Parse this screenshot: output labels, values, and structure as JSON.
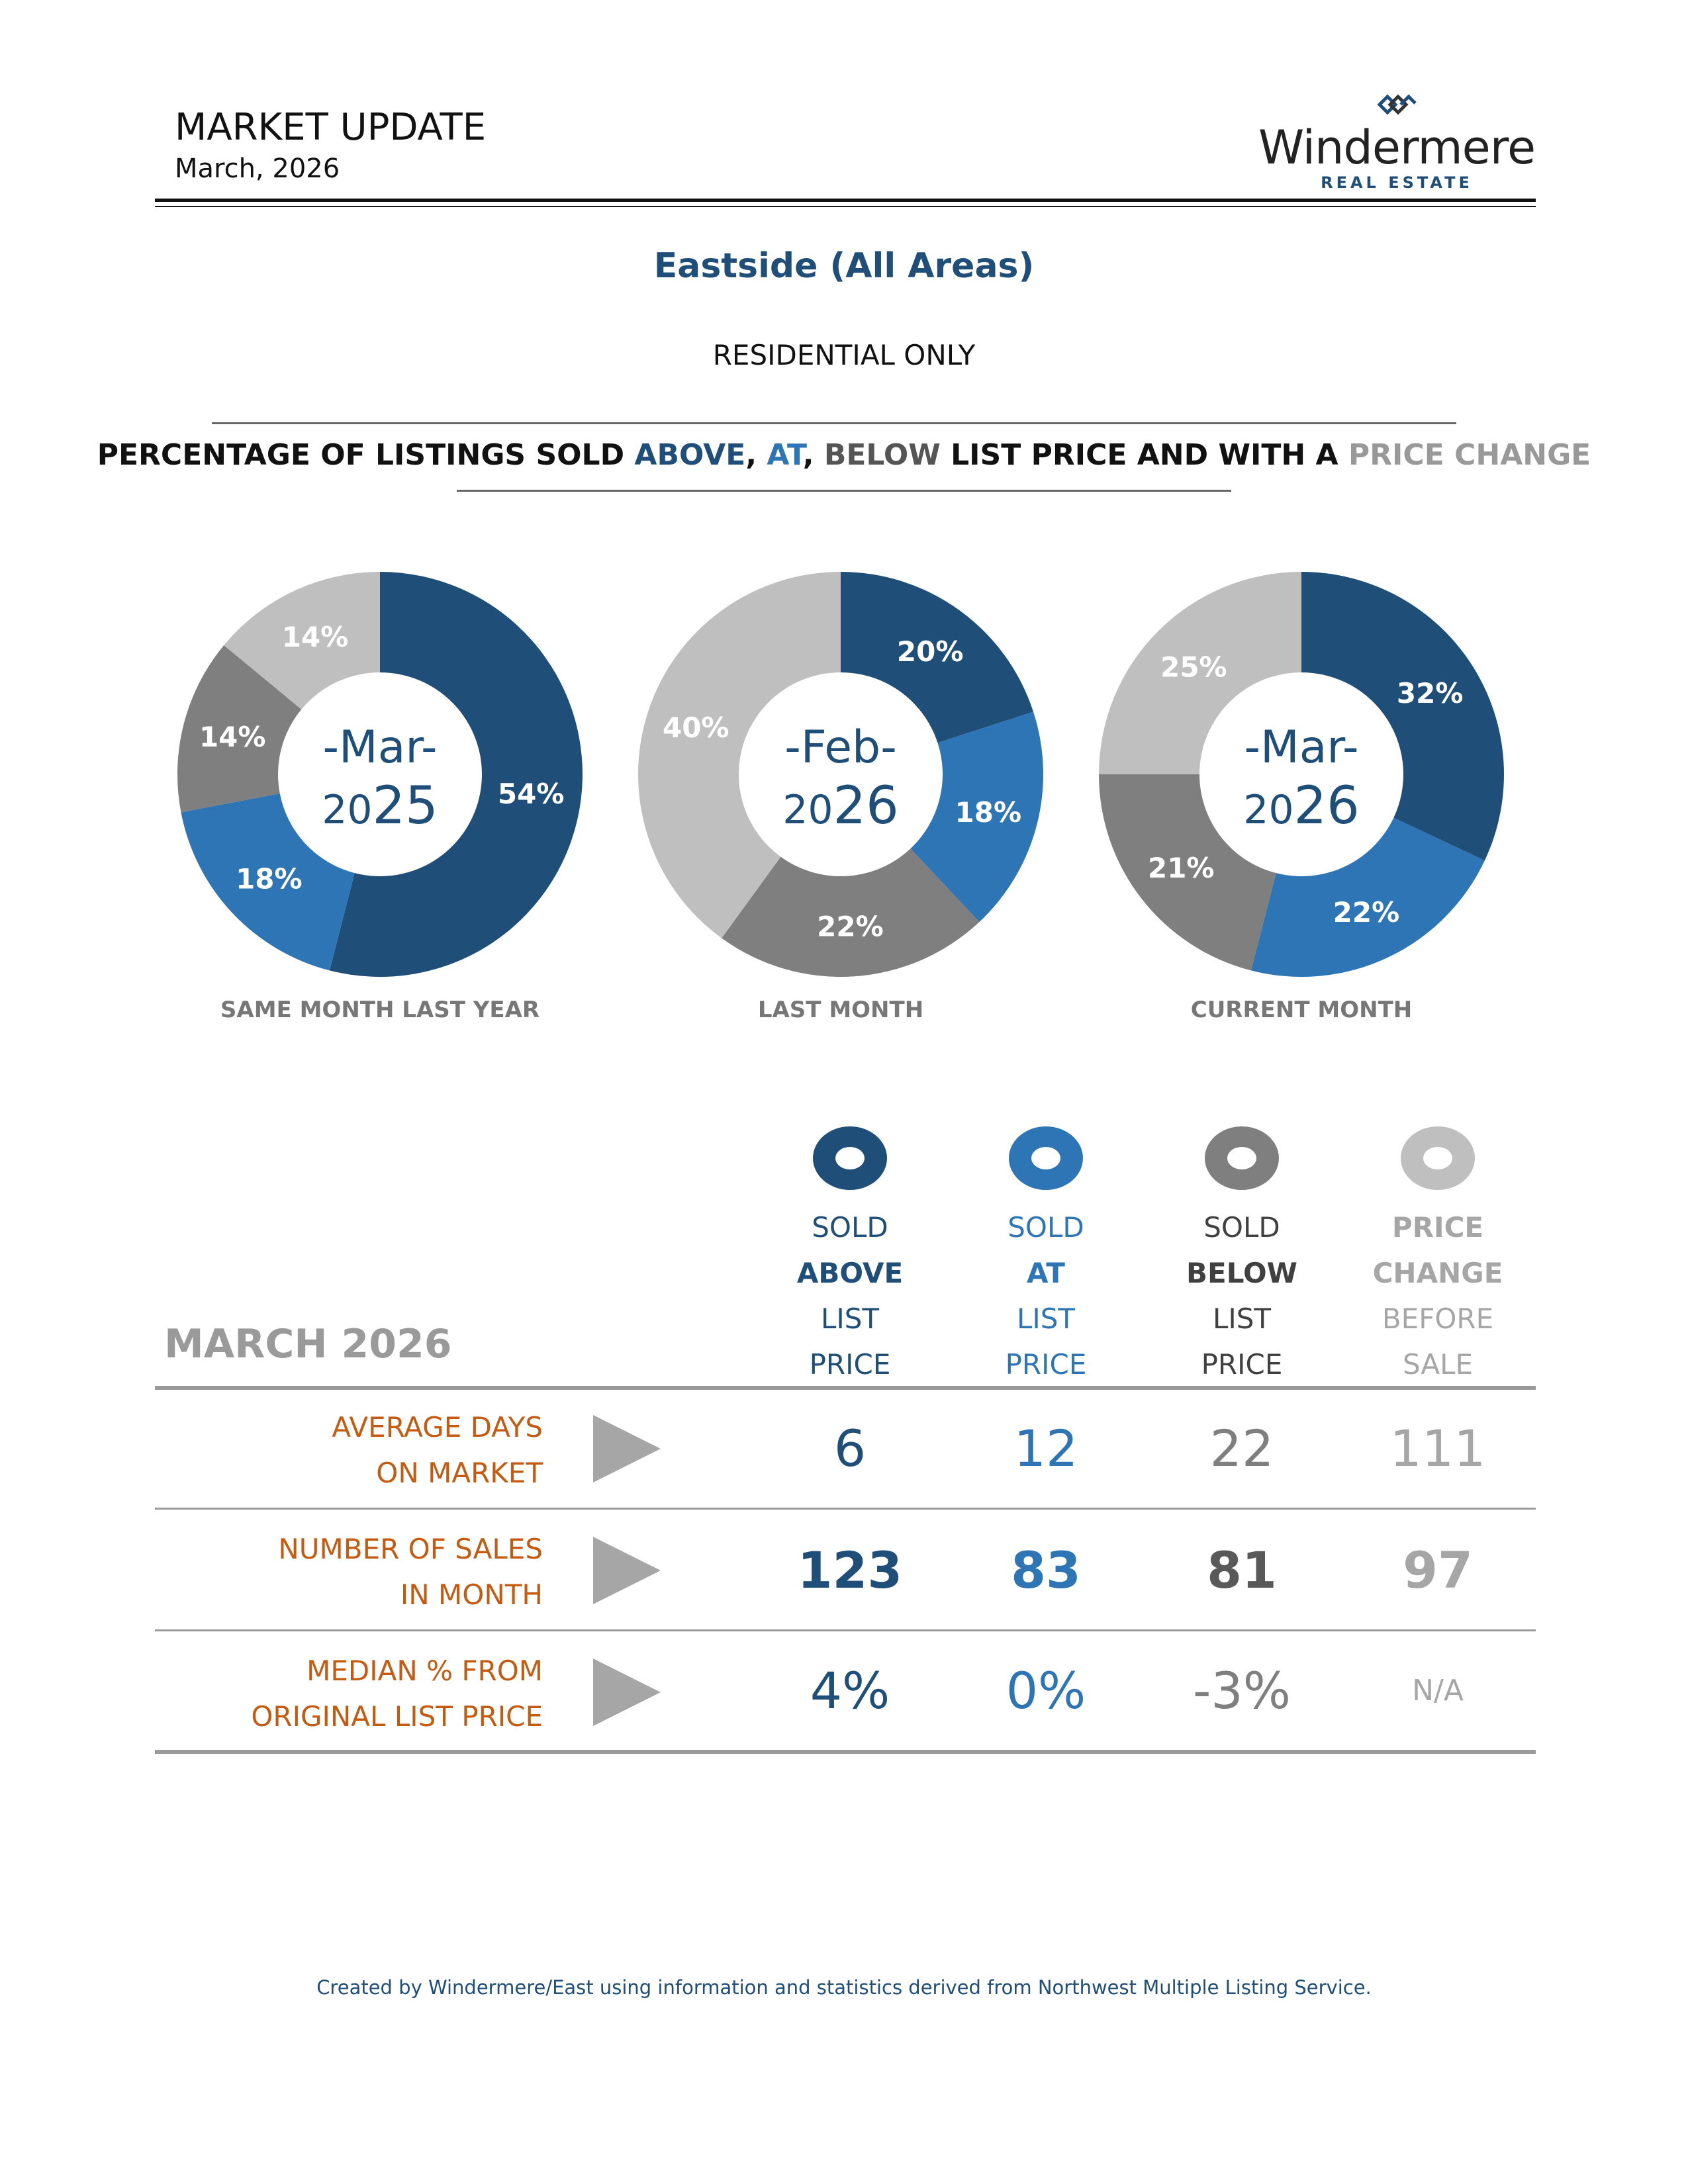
{
  "header": {
    "title": "MARKET UPDATE",
    "date": "March, 2026",
    "logo_name": "Windermere",
    "logo_sub": "REAL ESTATE"
  },
  "area_title": "Eastside (All Areas)",
  "subtitle": "RESIDENTIAL ONLY",
  "section_title": {
    "pre": "PERCENTAGE OF LISTINGS SOLD ",
    "above": "ABOVE",
    "sep1": ", ",
    "at": "AT",
    "sep2": ", ",
    "below": "BELOW",
    "mid": " LIST PRICE AND WITH A ",
    "change": "PRICE CHANGE"
  },
  "colors": {
    "above": "#1f4e79",
    "at": "#2e75b6",
    "below": "#7f7f7f",
    "change": "#bfbfbf",
    "label_orange": "#c55a11"
  },
  "chart_data": [
    {
      "type": "pie",
      "categories": [
        "Sold Above",
        "Sold At",
        "Sold Below",
        "Price Change"
      ],
      "values": [
        54,
        18,
        14,
        14
      ],
      "center_month": "-Mar-",
      "center_year_prefix": "20",
      "center_year_suffix": "25",
      "caption": "SAME MONTH LAST YEAR"
    },
    {
      "type": "pie",
      "categories": [
        "Sold Above",
        "Sold At",
        "Sold Below",
        "Price Change"
      ],
      "values": [
        20,
        18,
        22,
        40
      ],
      "center_month": "-Feb-",
      "center_year_prefix": "20",
      "center_year_suffix": "26",
      "caption": "LAST MONTH"
    },
    {
      "type": "pie",
      "categories": [
        "Sold Above",
        "Sold At",
        "Sold Below",
        "Price Change"
      ],
      "values": [
        32,
        22,
        21,
        25
      ],
      "center_month": "-Mar-",
      "center_year_prefix": "20",
      "center_year_suffix": "26",
      "caption": "CURRENT MONTH"
    }
  ],
  "table": {
    "title": "MARCH 2026",
    "columns": [
      {
        "l1": "SOLD",
        "l2": "ABOVE",
        "l3": "LIST",
        "l4": "PRICE"
      },
      {
        "l1": "SOLD",
        "l2": "AT",
        "l3": "LIST",
        "l4": "PRICE"
      },
      {
        "l1": "SOLD",
        "l2": "BELOW",
        "l3": "LIST",
        "l4": "PRICE"
      },
      {
        "l1": "PRICE",
        "l2": "CHANGE",
        "l3": "BEFORE",
        "l4": "SALE"
      }
    ],
    "rows": [
      {
        "label1": "AVERAGE DAYS",
        "label2": "ON MARKET",
        "values": [
          "6",
          "12",
          "22",
          "111"
        ]
      },
      {
        "label1": "NUMBER OF SALES",
        "label2": "IN MONTH",
        "values": [
          "123",
          "83",
          "81",
          "97"
        ]
      },
      {
        "label1": "MEDIAN % FROM",
        "label2": "ORIGINAL LIST PRICE",
        "values": [
          "4%",
          "0%",
          "-3%",
          "N/A"
        ]
      }
    ]
  },
  "footer": "Created by Windermere/East using information and statistics derived from Northwest Multiple Listing Service."
}
